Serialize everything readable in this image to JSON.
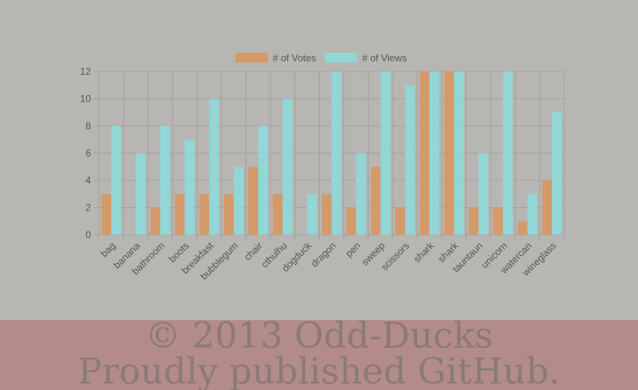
{
  "chart_data": {
    "type": "bar",
    "categories": [
      "bag",
      "banana",
      "bathroom",
      "boots",
      "breakfast",
      "bubblegum",
      "chair",
      "cthulhu",
      "dogduck",
      "dragon",
      "pen",
      "sweep",
      "scissors",
      "shark",
      "shark",
      "tauntaun",
      "unicorn",
      "watercan",
      "wineglass"
    ],
    "series": [
      {
        "name": "# of Votes",
        "color": "#d49a6a",
        "values": [
          3,
          0,
          2,
          3,
          3,
          3,
          5,
          3,
          0,
          3,
          2,
          5,
          2,
          12,
          12,
          2,
          2,
          1,
          4
        ]
      },
      {
        "name": "# of Views",
        "color": "#92d6d6",
        "values": [
          8,
          6,
          8,
          7,
          10,
          5,
          8,
          10,
          3,
          12,
          6,
          12,
          11,
          12,
          12,
          6,
          12,
          3,
          9
        ]
      }
    ],
    "yticks": [
      "0",
      "2",
      "4",
      "6",
      "8",
      "10",
      "12"
    ],
    "ylim": [
      0,
      12
    ],
    "grid": true,
    "legend": "top"
  },
  "footer": {
    "line1": "© 2013 Odd-Ducks",
    "line2": "Proudly published GitHub."
  }
}
